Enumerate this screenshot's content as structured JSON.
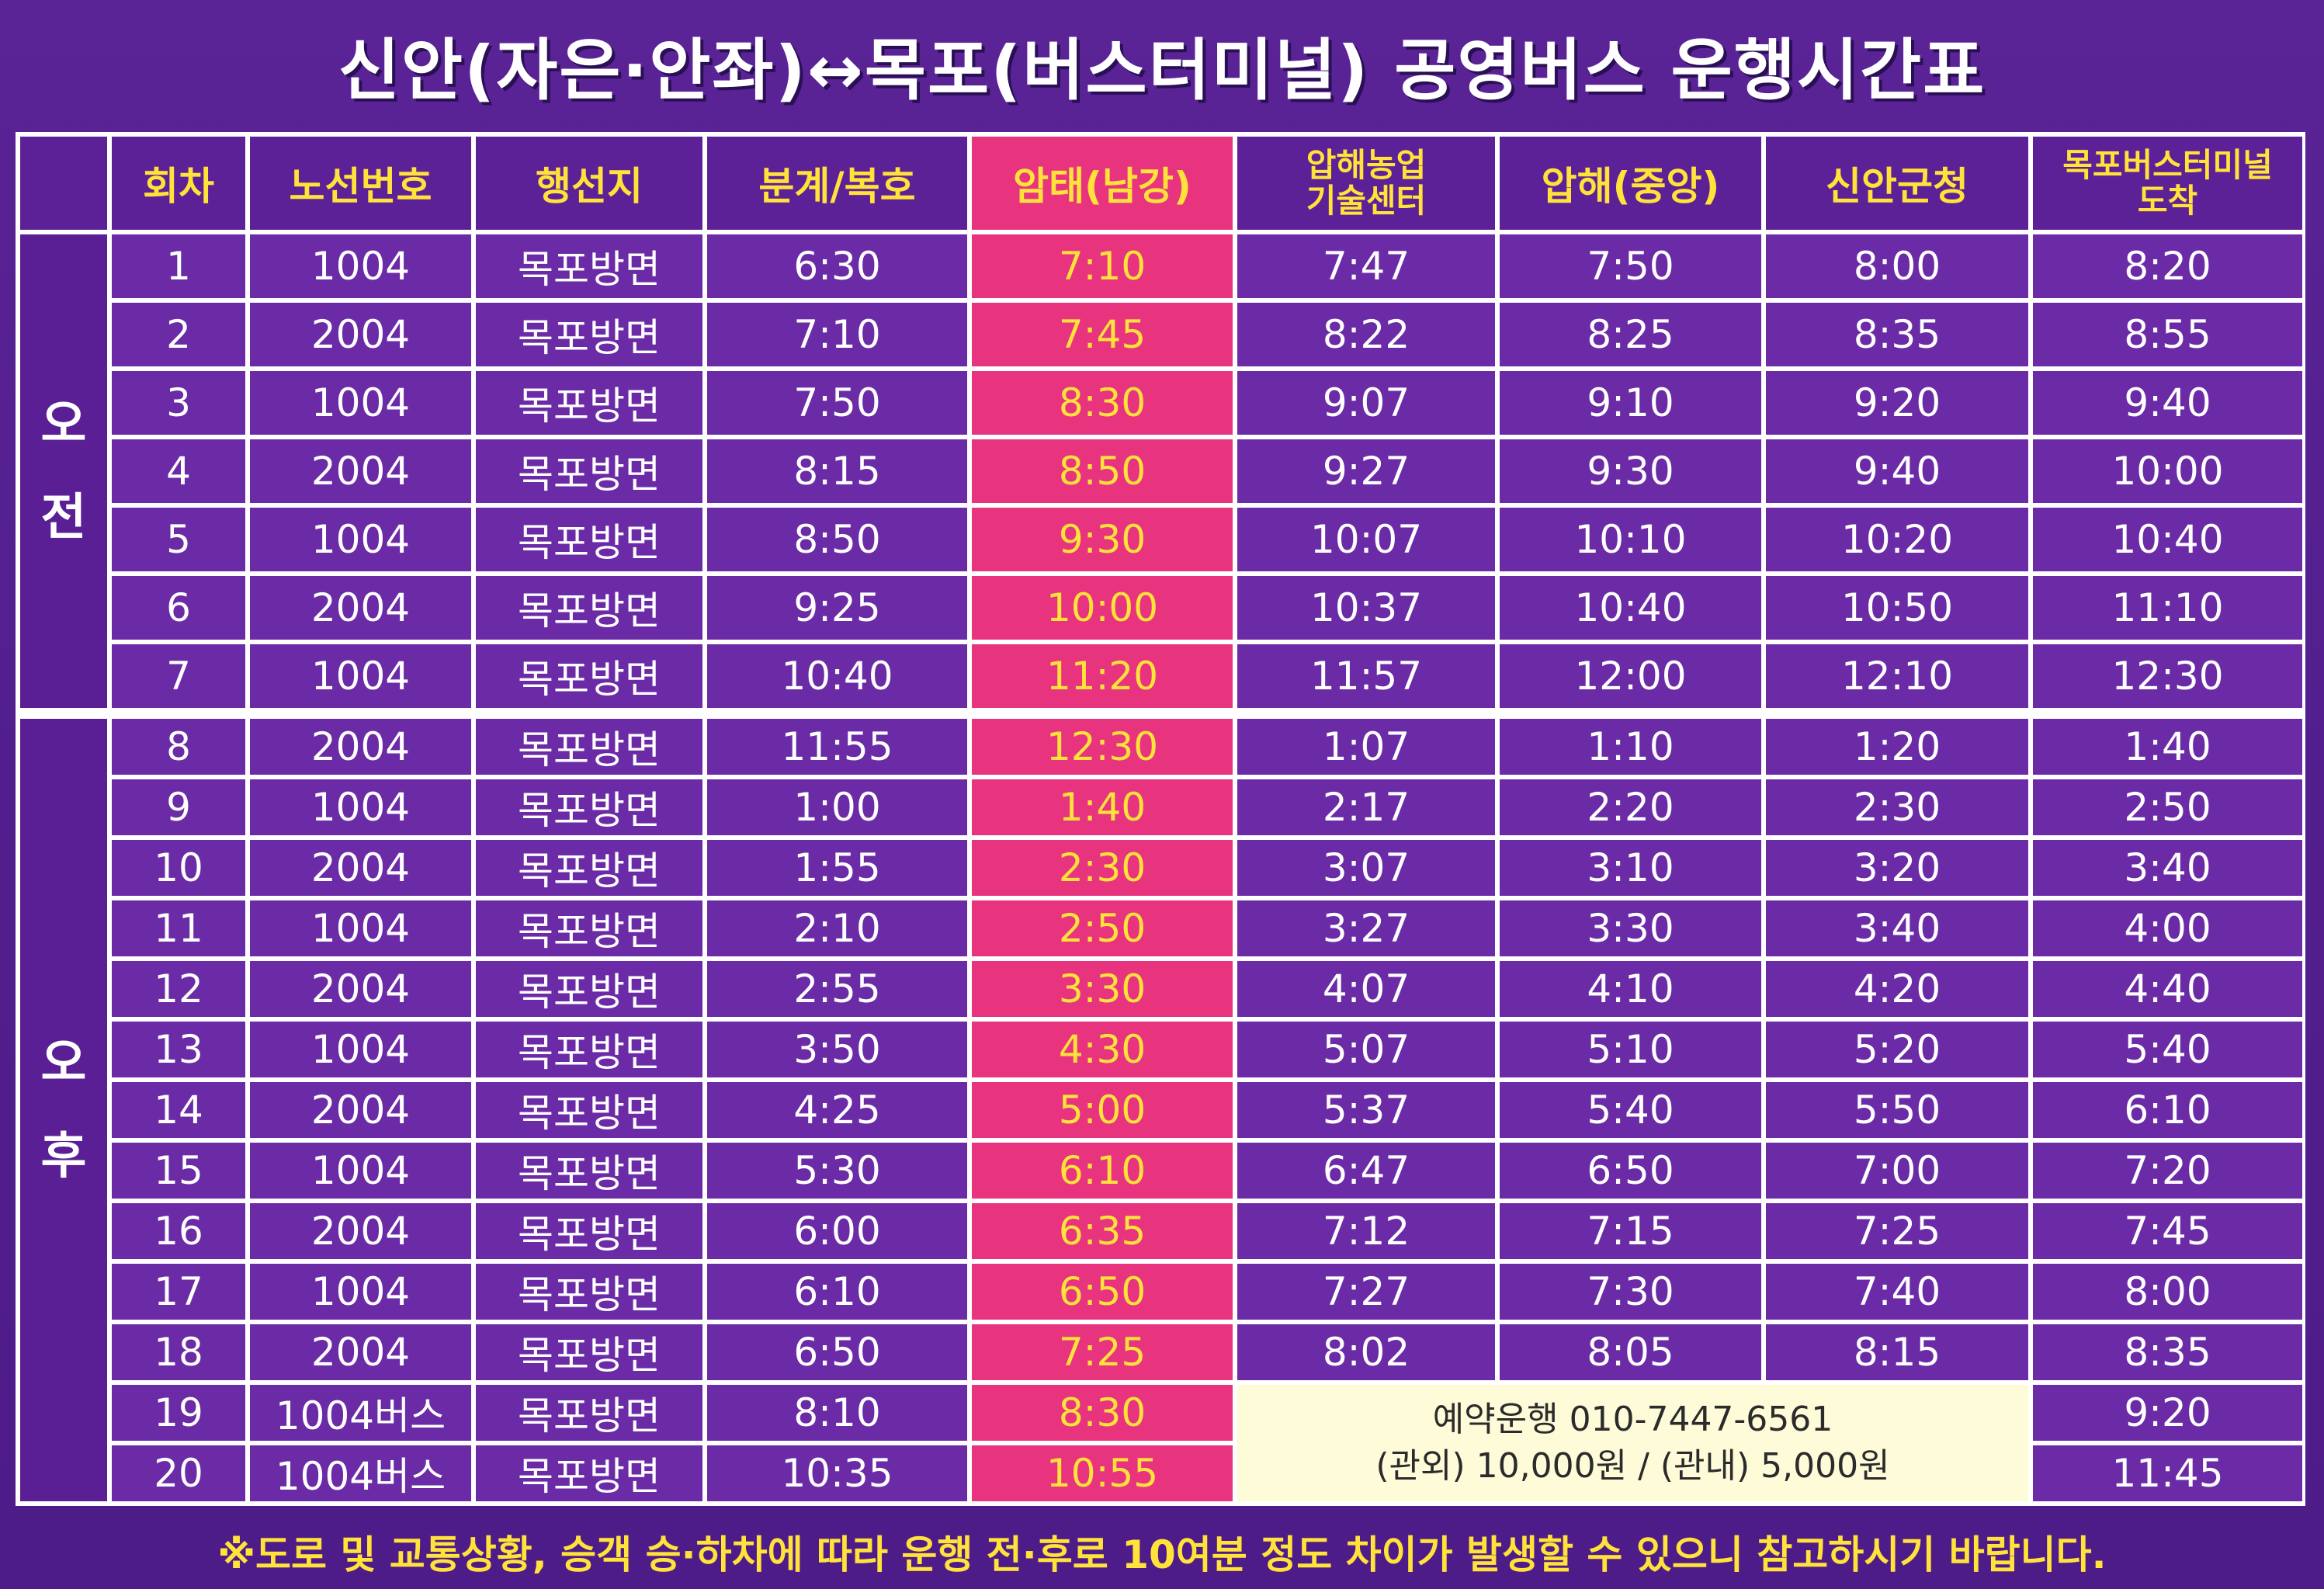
{
  "title": "신안(자은·안좌)↔목포(버스터미널) 공영버스 운행시간표",
  "headers": {
    "run": "회차",
    "route": "노선번호",
    "dest": "행선지",
    "bungye": "분계/복호",
    "amtae": "암태(남강)",
    "aphae_farm_1": "압해농업",
    "aphae_farm_2": "기술센터",
    "aphae_center": "압해(중앙)",
    "sinan_office": "신안군청",
    "mokpo_arrive_1": "목포버스터미널",
    "mokpo_arrive_2": "도착"
  },
  "sections": {
    "am": "오 전",
    "pm": "오 후"
  },
  "am_rows": [
    {
      "run": "1",
      "route": "1004",
      "dest": "목포방면",
      "bungye": "6:30",
      "amtae": "7:10",
      "farm": "7:47",
      "aphae": "7:50",
      "sinan": "8:00",
      "mokpo": "8:20"
    },
    {
      "run": "2",
      "route": "2004",
      "dest": "목포방면",
      "bungye": "7:10",
      "amtae": "7:45",
      "farm": "8:22",
      "aphae": "8:25",
      "sinan": "8:35",
      "mokpo": "8:55"
    },
    {
      "run": "3",
      "route": "1004",
      "dest": "목포방면",
      "bungye": "7:50",
      "amtae": "8:30",
      "farm": "9:07",
      "aphae": "9:10",
      "sinan": "9:20",
      "mokpo": "9:40"
    },
    {
      "run": "4",
      "route": "2004",
      "dest": "목포방면",
      "bungye": "8:15",
      "amtae": "8:50",
      "farm": "9:27",
      "aphae": "9:30",
      "sinan": "9:40",
      "mokpo": "10:00"
    },
    {
      "run": "5",
      "route": "1004",
      "dest": "목포방면",
      "bungye": "8:50",
      "amtae": "9:30",
      "farm": "10:07",
      "aphae": "10:10",
      "sinan": "10:20",
      "mokpo": "10:40"
    },
    {
      "run": "6",
      "route": "2004",
      "dest": "목포방면",
      "bungye": "9:25",
      "amtae": "10:00",
      "farm": "10:37",
      "aphae": "10:40",
      "sinan": "10:50",
      "mokpo": "11:10"
    },
    {
      "run": "7",
      "route": "1004",
      "dest": "목포방면",
      "bungye": "10:40",
      "amtae": "11:20",
      "farm": "11:57",
      "aphae": "12:00",
      "sinan": "12:10",
      "mokpo": "12:30"
    }
  ],
  "pm_rows": [
    {
      "run": "8",
      "route": "2004",
      "dest": "목포방면",
      "bungye": "11:55",
      "amtae": "12:30",
      "farm": "1:07",
      "aphae": "1:10",
      "sinan": "1:20",
      "mokpo": "1:40"
    },
    {
      "run": "9",
      "route": "1004",
      "dest": "목포방면",
      "bungye": "1:00",
      "amtae": "1:40",
      "farm": "2:17",
      "aphae": "2:20",
      "sinan": "2:30",
      "mokpo": "2:50"
    },
    {
      "run": "10",
      "route": "2004",
      "dest": "목포방면",
      "bungye": "1:55",
      "amtae": "2:30",
      "farm": "3:07",
      "aphae": "3:10",
      "sinan": "3:20",
      "mokpo": "3:40"
    },
    {
      "run": "11",
      "route": "1004",
      "dest": "목포방면",
      "bungye": "2:10",
      "amtae": "2:50",
      "farm": "3:27",
      "aphae": "3:30",
      "sinan": "3:40",
      "mokpo": "4:00"
    },
    {
      "run": "12",
      "route": "2004",
      "dest": "목포방면",
      "bungye": "2:55",
      "amtae": "3:30",
      "farm": "4:07",
      "aphae": "4:10",
      "sinan": "4:20",
      "mokpo": "4:40"
    },
    {
      "run": "13",
      "route": "1004",
      "dest": "목포방면",
      "bungye": "3:50",
      "amtae": "4:30",
      "farm": "5:07",
      "aphae": "5:10",
      "sinan": "5:20",
      "mokpo": "5:40"
    },
    {
      "run": "14",
      "route": "2004",
      "dest": "목포방면",
      "bungye": "4:25",
      "amtae": "5:00",
      "farm": "5:37",
      "aphae": "5:40",
      "sinan": "5:50",
      "mokpo": "6:10"
    },
    {
      "run": "15",
      "route": "1004",
      "dest": "목포방면",
      "bungye": "5:30",
      "amtae": "6:10",
      "farm": "6:47",
      "aphae": "6:50",
      "sinan": "7:00",
      "mokpo": "7:20"
    },
    {
      "run": "16",
      "route": "2004",
      "dest": "목포방면",
      "bungye": "6:00",
      "amtae": "6:35",
      "farm": "7:12",
      "aphae": "7:15",
      "sinan": "7:25",
      "mokpo": "7:45"
    },
    {
      "run": "17",
      "route": "1004",
      "dest": "목포방면",
      "bungye": "6:10",
      "amtae": "6:50",
      "farm": "7:27",
      "aphae": "7:30",
      "sinan": "7:40",
      "mokpo": "8:00"
    },
    {
      "run": "18",
      "route": "2004",
      "dest": "목포방면",
      "bungye": "6:50",
      "amtae": "7:25",
      "farm": "8:02",
      "aphae": "8:05",
      "sinan": "8:15",
      "mokpo": "8:35"
    }
  ],
  "special_rows": [
    {
      "run": "19",
      "route": "1004버스",
      "dest": "목포방면",
      "bungye": "8:10",
      "amtae": "8:30",
      "mokpo": "9:20"
    },
    {
      "run": "20",
      "route": "1004버스",
      "dest": "목포방면",
      "bungye": "10:35",
      "amtae": "10:55",
      "mokpo": "11:45"
    }
  ],
  "reservation": {
    "line1": "예약운행 010-7447-6561",
    "line2": "(관외) 10,000원 / (관내) 5,000원"
  },
  "footer": "※도로 및 교통상황, 승객 승·하차에 따라 운행 전·후로 10여분 정도 차이가 발생할 수 있으니 참고하시기 바랍니다.",
  "colors": {
    "background": "#521e8d",
    "cell": "#6b2aa6",
    "header_text": "#ffe23a",
    "amtae_column": "#e8347e",
    "reservation_box": "#fdfbd8"
  }
}
